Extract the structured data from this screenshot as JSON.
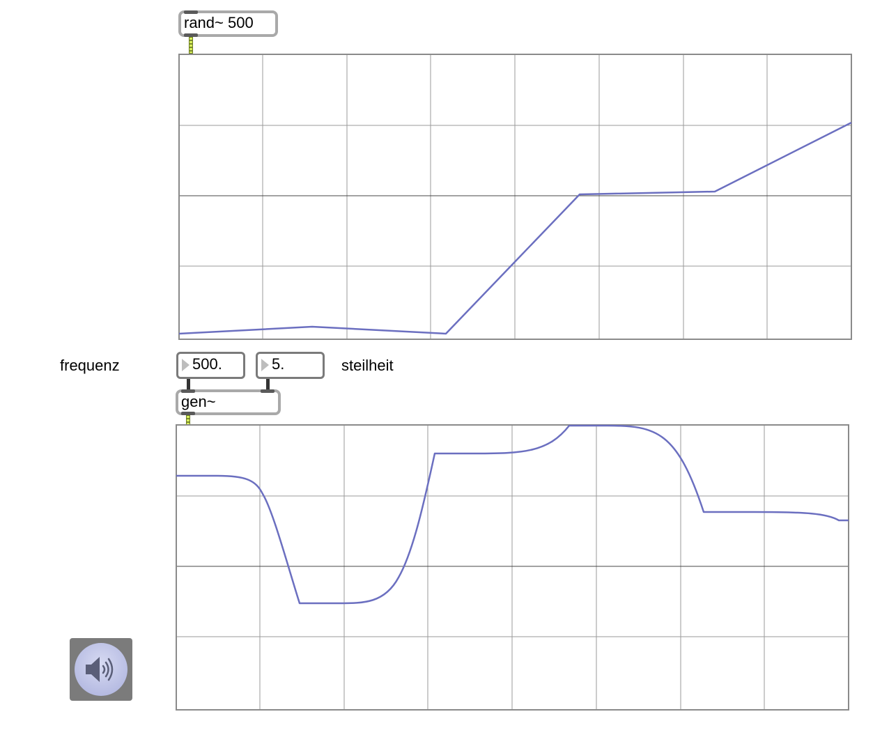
{
  "objects": {
    "rand": {
      "text": "rand~ 500"
    },
    "gen": {
      "text": "gen~"
    }
  },
  "number_boxes": {
    "frequency": {
      "value": "500."
    },
    "steepness": {
      "value": "5."
    }
  },
  "labels": {
    "frequency": "frequenz",
    "steepness": "steilheit"
  },
  "colors": {
    "signal_line": "#6b6fc0",
    "grid_line": "#9a9a9a",
    "axis_line": "#444444",
    "dac_background": "#7b7b7b"
  },
  "icons": {
    "dac": "speaker-icon"
  }
}
